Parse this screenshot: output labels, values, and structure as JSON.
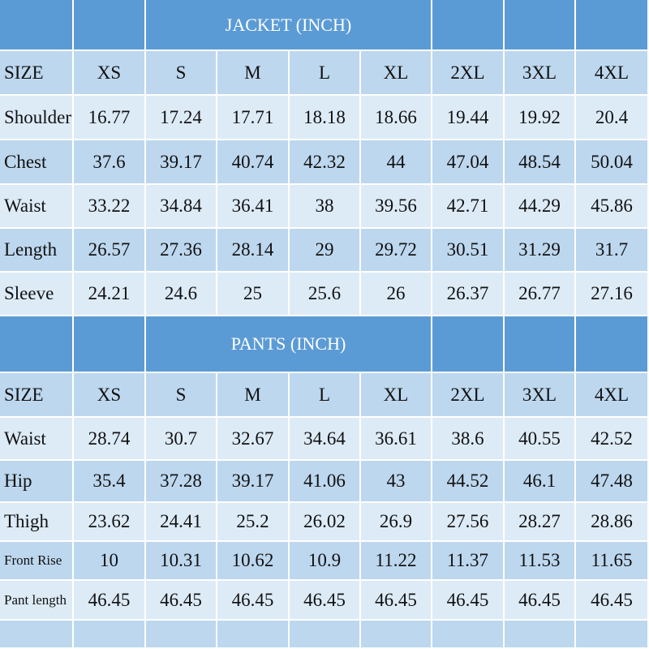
{
  "jacket": {
    "title": "JACKET (INCH)",
    "header": [
      "SIZE",
      "XS",
      "S",
      "M",
      "L",
      "XL",
      "2XL",
      "3XL",
      "4XL"
    ],
    "rows": [
      {
        "label": "Shoulder",
        "values": [
          16.77,
          17.24,
          17.71,
          18.18,
          18.66,
          19.44,
          19.92,
          20.4
        ]
      },
      {
        "label": "Chest",
        "values": [
          37.6,
          39.17,
          40.74,
          42.32,
          44,
          47.04,
          48.54,
          50.04
        ]
      },
      {
        "label": "Waist",
        "values": [
          33.22,
          34.84,
          36.41,
          38,
          39.56,
          42.71,
          44.29,
          45.86
        ]
      },
      {
        "label": "Length",
        "values": [
          26.57,
          27.36,
          28.14,
          29,
          29.72,
          30.51,
          31.29,
          31.7
        ]
      },
      {
        "label": "Sleeve",
        "values": [
          24.21,
          24.6,
          25,
          25.6,
          26,
          26.37,
          26.77,
          27.16
        ]
      }
    ]
  },
  "pants": {
    "title": "PANTS (INCH)",
    "header": [
      "SIZE",
      "XS",
      "S",
      "M",
      "L",
      "XL",
      "2XL",
      "3XL",
      "4XL"
    ],
    "rows": [
      {
        "label": "Waist",
        "values": [
          28.74,
          30.7,
          32.67,
          34.64,
          36.61,
          38.6,
          40.55,
          42.52
        ]
      },
      {
        "label": "Hip",
        "values": [
          35.4,
          37.28,
          39.17,
          41.06,
          43,
          44.52,
          46.1,
          47.48
        ]
      },
      {
        "label": "Thigh",
        "values": [
          23.62,
          24.41,
          25.2,
          26.02,
          26.9,
          27.56,
          28.27,
          28.86
        ]
      },
      {
        "label": "Front Rise",
        "values": [
          10,
          10.31,
          10.62,
          10.9,
          11.22,
          11.37,
          11.53,
          11.65
        ]
      },
      {
        "label": "Pant length",
        "values": [
          46.45,
          46.45,
          46.45,
          46.45,
          46.45,
          46.45,
          46.45,
          46.45
        ]
      }
    ]
  }
}
